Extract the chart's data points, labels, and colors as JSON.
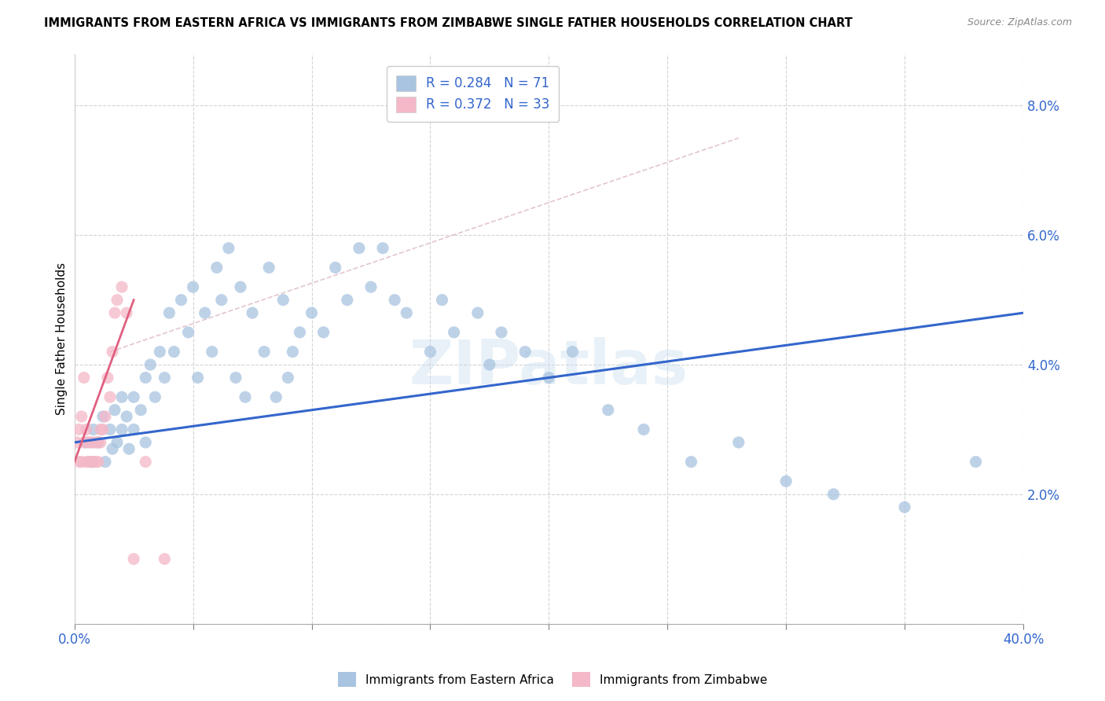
{
  "title": "IMMIGRANTS FROM EASTERN AFRICA VS IMMIGRANTS FROM ZIMBABWE SINGLE FATHER HOUSEHOLDS CORRELATION CHART",
  "source": "Source: ZipAtlas.com",
  "ylabel": "Single Father Households",
  "xlim": [
    0.0,
    0.4
  ],
  "ylim": [
    0.0,
    0.088
  ],
  "xtick_positions": [
    0.0,
    0.05,
    0.1,
    0.15,
    0.2,
    0.25,
    0.3,
    0.35,
    0.4
  ],
  "xtick_labels": [
    "0.0%",
    "",
    "",
    "",
    "",
    "",
    "",
    "",
    "40.0%"
  ],
  "ytick_positions": [
    0.0,
    0.02,
    0.04,
    0.06,
    0.08
  ],
  "ytick_labels_right": [
    "",
    "2.0%",
    "4.0%",
    "6.0%",
    "8.0%"
  ],
  "blue_R": 0.284,
  "blue_N": 71,
  "pink_R": 0.372,
  "pink_N": 33,
  "blue_color": "#a8c4e0",
  "pink_color": "#f4b8c8",
  "blue_line_color": "#3366cc",
  "pink_line_color": "#e06080",
  "watermark": "ZIPatlas",
  "legend_label_blue": "Immigrants from Eastern Africa",
  "legend_label_pink": "Immigrants from Zimbabwe",
  "blue_scatter_x": [
    0.005,
    0.007,
    0.008,
    0.01,
    0.012,
    0.013,
    0.015,
    0.016,
    0.017,
    0.018,
    0.02,
    0.02,
    0.022,
    0.023,
    0.025,
    0.025,
    0.028,
    0.03,
    0.03,
    0.032,
    0.034,
    0.036,
    0.038,
    0.04,
    0.042,
    0.045,
    0.048,
    0.05,
    0.052,
    0.055,
    0.058,
    0.06,
    0.062,
    0.065,
    0.068,
    0.07,
    0.072,
    0.075,
    0.08,
    0.082,
    0.085,
    0.088,
    0.09,
    0.092,
    0.095,
    0.1,
    0.105,
    0.11,
    0.115,
    0.12,
    0.125,
    0.13,
    0.135,
    0.14,
    0.15,
    0.155,
    0.16,
    0.17,
    0.175,
    0.18,
    0.19,
    0.2,
    0.21,
    0.225,
    0.24,
    0.26,
    0.28,
    0.3,
    0.32,
    0.35,
    0.38
  ],
  "blue_scatter_y": [
    0.028,
    0.025,
    0.03,
    0.028,
    0.032,
    0.025,
    0.03,
    0.027,
    0.033,
    0.028,
    0.03,
    0.035,
    0.032,
    0.027,
    0.035,
    0.03,
    0.033,
    0.038,
    0.028,
    0.04,
    0.035,
    0.042,
    0.038,
    0.048,
    0.042,
    0.05,
    0.045,
    0.052,
    0.038,
    0.048,
    0.042,
    0.055,
    0.05,
    0.058,
    0.038,
    0.052,
    0.035,
    0.048,
    0.042,
    0.055,
    0.035,
    0.05,
    0.038,
    0.042,
    0.045,
    0.048,
    0.045,
    0.055,
    0.05,
    0.058,
    0.052,
    0.058,
    0.05,
    0.048,
    0.042,
    0.05,
    0.045,
    0.048,
    0.04,
    0.045,
    0.042,
    0.038,
    0.042,
    0.033,
    0.03,
    0.025,
    0.028,
    0.022,
    0.02,
    0.018,
    0.025
  ],
  "pink_scatter_x": [
    0.001,
    0.002,
    0.002,
    0.003,
    0.003,
    0.004,
    0.004,
    0.005,
    0.005,
    0.006,
    0.006,
    0.007,
    0.007,
    0.008,
    0.008,
    0.009,
    0.009,
    0.01,
    0.01,
    0.011,
    0.011,
    0.012,
    0.013,
    0.014,
    0.015,
    0.016,
    0.017,
    0.018,
    0.02,
    0.022,
    0.025,
    0.03,
    0.038
  ],
  "pink_scatter_y": [
    0.028,
    0.025,
    0.03,
    0.025,
    0.032,
    0.028,
    0.038,
    0.025,
    0.03,
    0.025,
    0.028,
    0.025,
    0.028,
    0.025,
    0.028,
    0.025,
    0.028,
    0.025,
    0.028,
    0.03,
    0.028,
    0.03,
    0.032,
    0.038,
    0.035,
    0.042,
    0.048,
    0.05,
    0.052,
    0.048,
    0.01,
    0.025,
    0.01
  ],
  "blue_trend_x": [
    0.0,
    0.4
  ],
  "blue_trend_y": [
    0.028,
    0.048
  ],
  "pink_trend_x": [
    0.0,
    0.025
  ],
  "pink_trend_y": [
    0.025,
    0.05
  ]
}
